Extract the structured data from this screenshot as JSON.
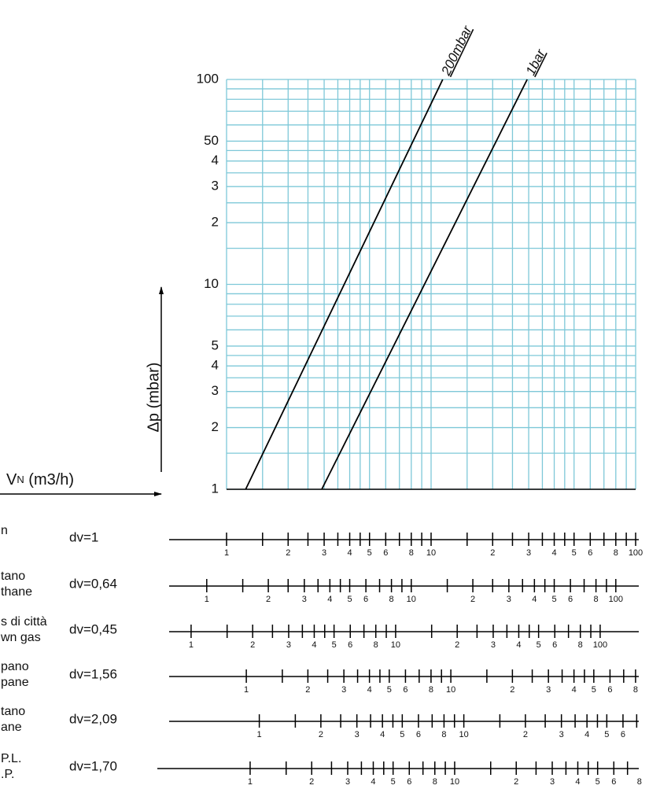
{
  "chart_data": {
    "type": "line",
    "ylabel": "Δp (mbar)",
    "xlabel": "V",
    "xlabel_sub": "N",
    "xlabel_unit": " (m3/h)",
    "log_x": true,
    "log_y": true,
    "xlim": [
      1,
      100
    ],
    "ylim": [
      1,
      100
    ],
    "yticks": [
      1,
      2,
      3,
      4,
      5,
      10,
      {
        "value": 20,
        "label": "2"
      },
      {
        "value": 30,
        "label": "3"
      },
      {
        "value": 40,
        "label": "4"
      },
      50,
      100
    ],
    "grid": true,
    "grid_color": "#7ec8d8",
    "grid_values": [
      1,
      1.5,
      2,
      2.5,
      3,
      3.5,
      4,
      4.5,
      5,
      6,
      7,
      8,
      9,
      10,
      15,
      20,
      25,
      30,
      35,
      40,
      45,
      50,
      60,
      70,
      80,
      90,
      100
    ],
    "series": [
      {
        "name": "200mbar",
        "color": "#000000",
        "x": [
          1.24,
          11.4
        ],
        "values": [
          1,
          100
        ]
      },
      {
        "name": "1bar",
        "color": "#000000",
        "x": [
          2.92,
          29.5
        ],
        "values": [
          1,
          100
        ]
      }
    ]
  },
  "scale_ticks": [
    1,
    1.5,
    2,
    2.5,
    3,
    3.5,
    4,
    4.5,
    5,
    6,
    7,
    8,
    9,
    10,
    15,
    20,
    25,
    30,
    35,
    40,
    45,
    50,
    60,
    70,
    80,
    90,
    100
  ],
  "scale_labels": [
    1,
    2,
    3,
    4,
    5,
    6,
    8,
    10,
    {
      "value": 20,
      "label": "2"
    },
    {
      "value": 30,
      "label": "3"
    },
    {
      "value": 40,
      "label": "4"
    },
    {
      "value": 50,
      "label": "5"
    },
    {
      "value": 60,
      "label": "6"
    },
    {
      "value": 80,
      "label": "8"
    },
    100
  ],
  "scales": [
    {
      "names": [
        "n"
      ],
      "density": {
        "value": 1,
        "label": "dv=1"
      }
    },
    {
      "names": [
        "tano",
        "thane"
      ],
      "density": {
        "value": 0.64,
        "label": "dv=0,64"
      }
    },
    {
      "names": [
        "s di città",
        "wn gas"
      ],
      "density": {
        "value": 0.45,
        "label": "dv=0,45"
      }
    },
    {
      "names": [
        "pano",
        "pane"
      ],
      "density": {
        "value": 1.56,
        "label": "dv=1,56"
      }
    },
    {
      "names": [
        "tano",
        "ane"
      ],
      "density": {
        "value": 2.09,
        "label": "dv=2,09"
      }
    },
    {
      "names": [
        "P.L.",
        ".P."
      ],
      "density": {
        "value": 1.7,
        "label": "dv=1,70"
      }
    }
  ]
}
